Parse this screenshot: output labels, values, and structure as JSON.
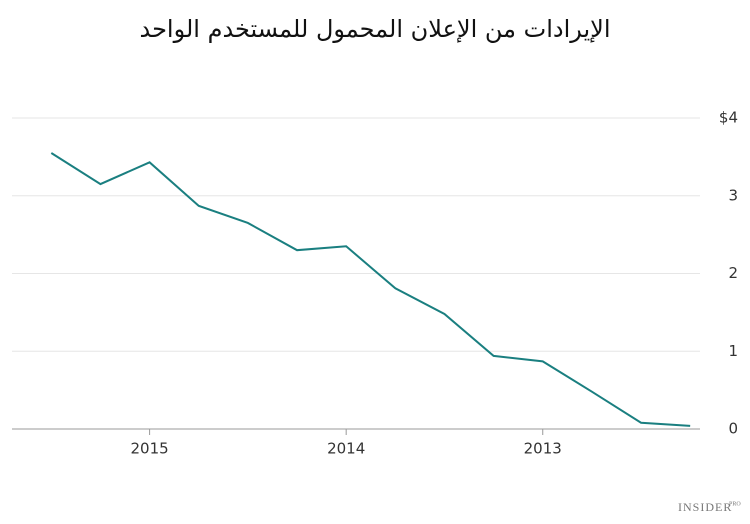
{
  "chart_data": {
    "type": "line",
    "title": "الإيرادات من  الإعلان المحمول للمستخدم الواحد",
    "x": [
      2015.5,
      2015.25,
      2015,
      2014.75,
      2014.5,
      2014.25,
      2014,
      2013.75,
      2013.5,
      2013.25,
      2013,
      2012.75,
      2012.5,
      2012.25
    ],
    "series": [
      {
        "color": "#1a7f80",
        "values": [
          3.55,
          3.15,
          3.43,
          2.87,
          2.65,
          2.3,
          2.35,
          1.81,
          1.48,
          0.94,
          0.87,
          0.48,
          0.08,
          0.04
        ]
      }
    ],
    "xlim": [
      2015.7,
      2012.2
    ],
    "xticks": [
      2015,
      2014,
      2013
    ],
    "ylim": [
      0,
      4
    ],
    "yticks": [
      0,
      1,
      2,
      3,
      {
        "value": 4,
        "label": "$4"
      }
    ],
    "grid": true,
    "y_axis_side": "right"
  },
  "branding": {
    "name": "INSIDER",
    "tag": "PRO"
  }
}
